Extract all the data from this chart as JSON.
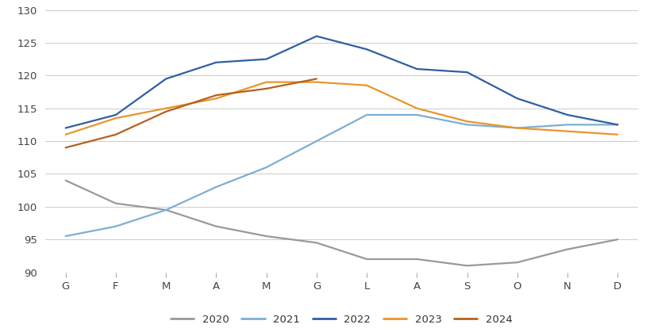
{
  "months": [
    "G",
    "F",
    "M",
    "A",
    "M",
    "G",
    "L",
    "A",
    "S",
    "O",
    "N",
    "D"
  ],
  "series": {
    "2020": [
      104,
      100.5,
      99.5,
      97,
      95.5,
      94.5,
      92,
      92,
      91,
      91.5,
      93.5,
      95
    ],
    "2021": [
      95.5,
      97,
      99.5,
      103,
      106,
      110,
      114,
      114,
      112.5,
      112,
      112.5,
      112.5
    ],
    "2022": [
      112,
      114,
      119.5,
      122,
      122.5,
      126,
      124,
      121,
      120.5,
      116.5,
      114,
      112.5
    ],
    "2023": [
      111,
      113.5,
      115,
      116.5,
      119,
      119,
      118.5,
      115,
      113,
      112,
      111.5,
      111
    ],
    "2024": [
      109,
      111,
      114.5,
      117,
      118,
      119.5,
      null,
      null,
      null,
      null,
      null,
      null
    ]
  },
  "colors": {
    "2020": "#999999",
    "2021": "#7BAFD4",
    "2022": "#2E5FA3",
    "2023": "#E8952B",
    "2024": "#B5601A"
  },
  "ylim": [
    90,
    130
  ],
  "yticks": [
    90,
    95,
    100,
    105,
    110,
    115,
    120,
    125,
    130
  ],
  "background_color": "#ffffff",
  "grid_color": "#cccccc",
  "legend_labels": [
    "2020",
    "2021",
    "2022",
    "2023",
    "2024"
  ]
}
